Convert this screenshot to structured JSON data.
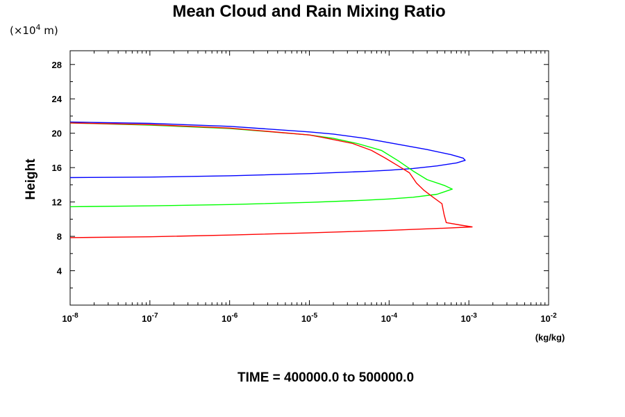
{
  "chart_data": {
    "type": "line",
    "title": "Mean Cloud and Rain Mixing Ratio",
    "ylabel": "Height",
    "y_scale_text": "(×10",
    "y_scale_exp": "4",
    "y_scale_unit": " m)",
    "xunit": "(kg/kg)",
    "footer": "TIME = 400000.0 to 500000.0",
    "xscale": "log",
    "xlim": [
      1e-08,
      0.01
    ],
    "ylim": [
      0,
      29.6
    ],
    "x_ticks": [
      {
        "base": "10",
        "exp": "-8",
        "value": 1e-08
      },
      {
        "base": "10",
        "exp": "-7",
        "value": 1e-07
      },
      {
        "base": "10",
        "exp": "-6",
        "value": 1e-06
      },
      {
        "base": "10",
        "exp": "-5",
        "value": 1e-05
      },
      {
        "base": "10",
        "exp": "-4",
        "value": 0.0001
      },
      {
        "base": "10",
        "exp": "-3",
        "value": 0.001
      },
      {
        "base": "10",
        "exp": "-2",
        "value": 0.01
      }
    ],
    "y_ticks": [
      {
        "label": "4",
        "value": 4
      },
      {
        "label": "8",
        "value": 8
      },
      {
        "label": "12",
        "value": 12
      },
      {
        "label": "16",
        "value": 16
      },
      {
        "label": "20",
        "value": 20
      },
      {
        "label": "24",
        "value": 24
      },
      {
        "label": "28",
        "value": 28
      }
    ],
    "grid": false,
    "series": [
      {
        "color": "#0000ff",
        "points": [
          [
            1e-08,
            14.84
          ],
          [
            1e-07,
            14.9
          ],
          [
            1e-06,
            15.05
          ],
          [
            1e-05,
            15.3
          ],
          [
            5e-05,
            15.55
          ],
          [
            0.0001,
            15.7
          ],
          [
            0.0002,
            15.9
          ],
          [
            0.0004,
            16.2
          ],
          [
            0.0007,
            16.55
          ],
          [
            0.0009,
            16.85
          ],
          [
            0.00085,
            17.1
          ],
          [
            0.0006,
            17.5
          ],
          [
            0.0003,
            18.1
          ],
          [
            0.0001,
            18.9
          ],
          [
            5e-05,
            19.4
          ],
          [
            2e-05,
            19.9
          ],
          [
            1e-05,
            20.15
          ],
          [
            1e-06,
            20.8
          ],
          [
            1e-07,
            21.15
          ],
          [
            1e-08,
            21.3
          ]
        ]
      },
      {
        "color": "#00ff00",
        "points": [
          [
            1e-08,
            11.45
          ],
          [
            1e-07,
            11.55
          ],
          [
            1e-06,
            11.7
          ],
          [
            1e-05,
            11.95
          ],
          [
            5e-05,
            12.2
          ],
          [
            0.0001,
            12.35
          ],
          [
            0.0002,
            12.55
          ],
          [
            0.0004,
            12.9
          ],
          [
            0.00062,
            13.5
          ],
          [
            0.0005,
            13.9
          ],
          [
            0.0003,
            14.6
          ],
          [
            0.0002,
            15.6
          ],
          [
            0.00013,
            16.8
          ],
          [
            8e-05,
            18.0
          ],
          [
            4e-05,
            18.8
          ],
          [
            2e-05,
            19.4
          ],
          [
            1e-05,
            19.8
          ],
          [
            1e-06,
            20.55
          ],
          [
            1e-07,
            20.95
          ],
          [
            1e-08,
            21.2
          ]
        ]
      },
      {
        "color": "#ff0000",
        "points": [
          [
            1e-08,
            7.85
          ],
          [
            1e-07,
            7.95
          ],
          [
            1e-06,
            8.15
          ],
          [
            1e-05,
            8.4
          ],
          [
            0.0001,
            8.7
          ],
          [
            0.0005,
            8.95
          ],
          [
            0.0011,
            9.1
          ],
          [
            0.0008,
            9.3
          ],
          [
            0.00052,
            9.6
          ],
          [
            0.00049,
            10.5
          ],
          [
            0.00046,
            11.8
          ],
          [
            0.00035,
            12.6
          ],
          [
            0.00027,
            13.4
          ],
          [
            0.00022,
            14.2
          ],
          [
            0.00018,
            15.4
          ],
          [
            0.00013,
            16.2
          ],
          [
            9e-05,
            17.1
          ],
          [
            6e-05,
            18.0
          ],
          [
            3.5e-05,
            18.8
          ],
          [
            1.5e-05,
            19.5
          ],
          [
            1e-05,
            19.8
          ],
          [
            1e-06,
            20.6
          ],
          [
            1e-07,
            21.0
          ],
          [
            1e-08,
            21.2
          ]
        ]
      }
    ]
  }
}
